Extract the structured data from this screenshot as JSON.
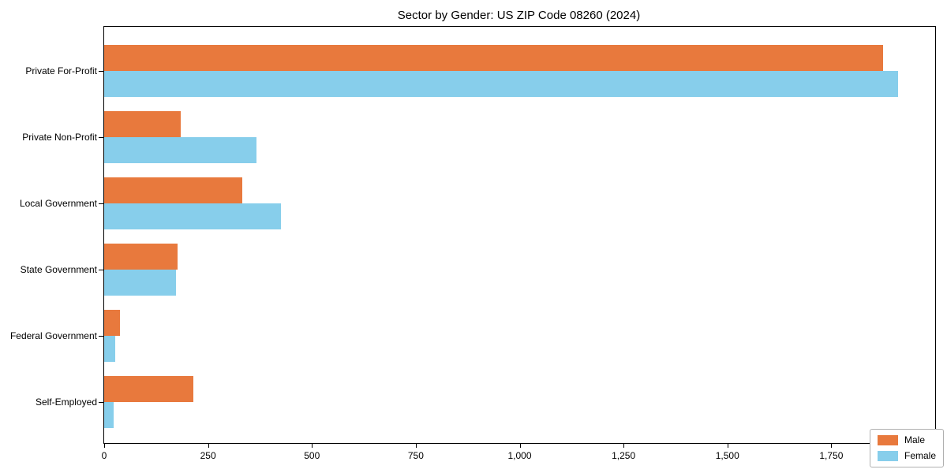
{
  "chart_data": {
    "type": "bar",
    "orientation": "horizontal",
    "title": "Sector by Gender: US ZIP Code 08260 (2024)",
    "categories": [
      "Private For-Profit",
      "Private Non-Profit",
      "Local Government",
      "State Government",
      "Federal Government",
      "Self-Employed"
    ],
    "series": [
      {
        "name": "Male",
        "color": "#E8793D",
        "values": [
          1875,
          185,
          333,
          177,
          38,
          215
        ]
      },
      {
        "name": "Female",
        "color": "#87CEEB",
        "values": [
          1910,
          367,
          425,
          172,
          27,
          22
        ]
      }
    ],
    "xlabel": "",
    "ylabel": "",
    "xlim": [
      0,
      2000
    ],
    "x_ticks": [
      0,
      250,
      500,
      750,
      1000,
      1250,
      1500,
      1750
    ],
    "x_tick_labels": [
      "0",
      "250",
      "500",
      "750",
      "1,000",
      "1,250",
      "1,500",
      "1,750"
    ],
    "grid": false,
    "legend_position": "lower right",
    "plot_border_color": "#000000",
    "background_color": "#ffffff"
  }
}
